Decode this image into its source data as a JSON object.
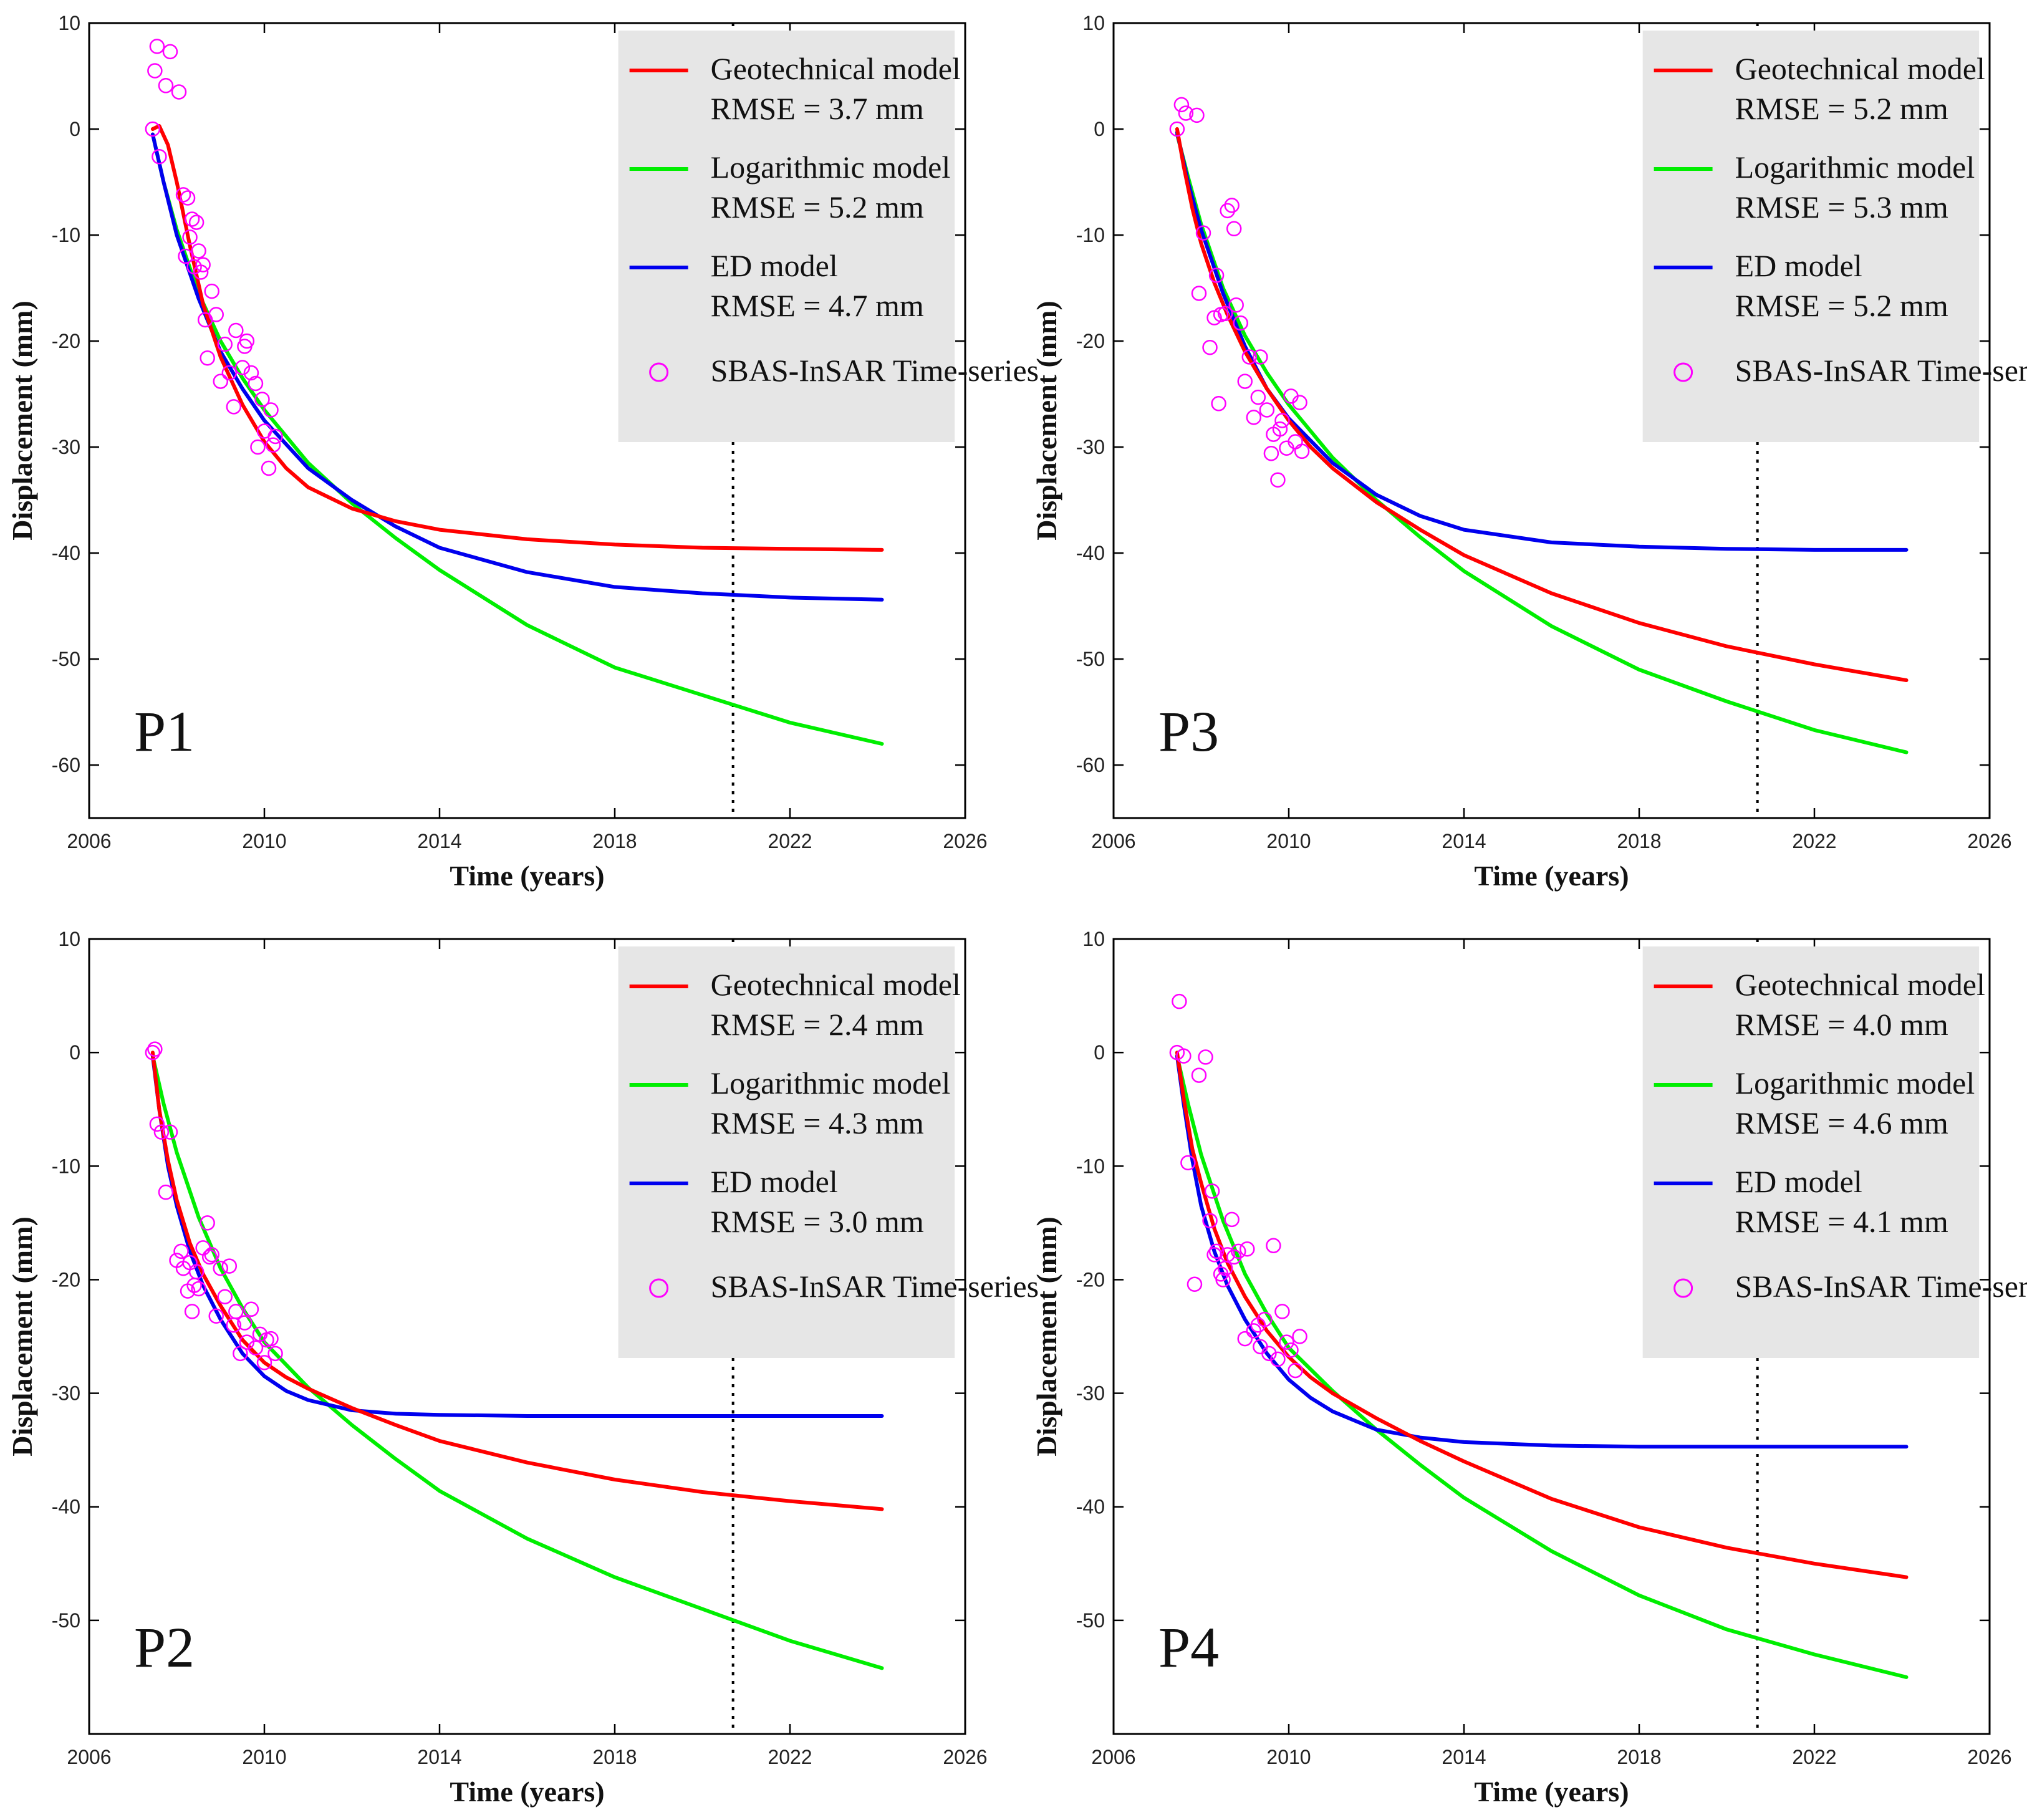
{
  "colors": {
    "geotechnical": "#ff0000",
    "logarithmic": "#00ee00",
    "ed": "#0000ee",
    "sbas": "#ff00ff",
    "legend_bg": "#e6e6e6"
  },
  "legend_labels": {
    "geotechnical": "Geotechnical model",
    "logarithmic": "Logarithmic model",
    "ed": "ED model",
    "sbas": "SBAS-InSAR Time-series"
  },
  "chart_data": [
    {
      "type": "line",
      "panel": "P1",
      "xlabel": "Time (years)",
      "ylabel": "Displacement (mm)",
      "xlim": [
        2006,
        2026
      ],
      "ylim": [
        -65,
        10
      ],
      "xticks": [
        2006,
        2010,
        2014,
        2018,
        2022,
        2026
      ],
      "yticks": [
        10,
        0,
        -10,
        -20,
        -30,
        -40,
        -50,
        -60
      ],
      "vline_x": 2020.7,
      "legend_position": "top-right",
      "rmse": {
        "geotechnical": "RMSE = 3.7 mm",
        "logarithmic": "RMSE = 5.2 mm",
        "ed": "RMSE = 4.7 mm"
      },
      "series": [
        {
          "name": "Geotechnical model",
          "key": "geotechnical",
          "x": [
            2007.45,
            2007.6,
            2007.8,
            2008.0,
            2008.3,
            2008.6,
            2009.0,
            2009.5,
            2010.0,
            2010.5,
            2011.0,
            2012.0,
            2013.0,
            2014.0,
            2016.0,
            2018.0,
            2020.0,
            2022.0,
            2024.1
          ],
          "values": [
            0,
            0.3,
            -1.5,
            -5,
            -11,
            -16.5,
            -21.5,
            -26,
            -29.5,
            -32,
            -33.8,
            -35.8,
            -37,
            -37.8,
            -38.7,
            -39.2,
            -39.5,
            -39.6,
            -39.7
          ]
        },
        {
          "name": "Logarithmic model",
          "key": "logarithmic",
          "x": [
            2007.45,
            2007.7,
            2008.0,
            2008.5,
            2009.0,
            2009.5,
            2010.0,
            2011.0,
            2012.0,
            2013.0,
            2014.0,
            2016.0,
            2018.0,
            2020.0,
            2022.0,
            2024.1
          ],
          "values": [
            -0.5,
            -5,
            -9.5,
            -15.5,
            -20,
            -23.5,
            -26.5,
            -31.5,
            -35.3,
            -38.6,
            -41.6,
            -46.8,
            -50.8,
            -53.4,
            -56,
            -58
          ]
        },
        {
          "name": "ED model",
          "key": "ed",
          "x": [
            2007.45,
            2007.7,
            2008.0,
            2008.5,
            2009.0,
            2009.5,
            2010.0,
            2011.0,
            2012.0,
            2013.0,
            2014.0,
            2016.0,
            2018.0,
            2020.0,
            2022.0,
            2024.1
          ],
          "values": [
            -0.5,
            -5,
            -10,
            -16,
            -21,
            -24.5,
            -27.5,
            -32,
            -35,
            -37.5,
            -39.5,
            -41.8,
            -43.2,
            -43.8,
            -44.2,
            -44.4
          ]
        }
      ],
      "scatter": {
        "name": "SBAS-InSAR Time-series",
        "key": "sbas",
        "x": [
          2007.45,
          2007.5,
          2007.55,
          2007.6,
          2007.75,
          2007.85,
          2008.05,
          2008.15,
          2008.2,
          2008.25,
          2008.3,
          2008.35,
          2008.4,
          2008.45,
          2008.5,
          2008.55,
          2008.6,
          2008.65,
          2008.7,
          2008.8,
          2008.9,
          2009.0,
          2009.1,
          2009.2,
          2009.3,
          2009.35,
          2009.5,
          2009.55,
          2009.6,
          2009.7,
          2009.8,
          2009.85,
          2009.95,
          2010.0,
          2010.1,
          2010.15,
          2010.2,
          2010.25
        ],
        "values": [
          0,
          5.5,
          7.8,
          -2.6,
          4.1,
          7.3,
          3.5,
          -6.2,
          -12,
          -6.5,
          -10.2,
          -8.5,
          -13,
          -8.8,
          -11.5,
          -13.5,
          -12.8,
          -18,
          -21.6,
          -15.3,
          -17.5,
          -23.8,
          -20.3,
          -23,
          -26.2,
          -19,
          -22.5,
          -20.5,
          -20,
          -23,
          -24,
          -30,
          -25.5,
          -28.5,
          -32,
          -26.5,
          -29.8,
          -29
        ]
      }
    },
    {
      "type": "line",
      "panel": "P3",
      "xlabel": "Time (years)",
      "ylabel": "Displacement (mm)",
      "xlim": [
        2006,
        2026
      ],
      "ylim": [
        -65,
        10
      ],
      "xticks": [
        2006,
        2010,
        2014,
        2018,
        2022,
        2026
      ],
      "yticks": [
        10,
        0,
        -10,
        -20,
        -30,
        -40,
        -50,
        -60
      ],
      "vline_x": 2020.7,
      "legend_position": "top-right",
      "rmse": {
        "geotechnical": "RMSE = 5.2 mm",
        "logarithmic": "RMSE = 5.3 mm",
        "ed": "RMSE = 5.2 mm"
      },
      "series": [
        {
          "name": "Geotechnical model",
          "key": "geotechnical",
          "x": [
            2007.45,
            2007.6,
            2007.8,
            2008.0,
            2008.3,
            2008.6,
            2009.0,
            2009.5,
            2010.0,
            2010.5,
            2011.0,
            2012.0,
            2013.0,
            2014.0,
            2016.0,
            2018.0,
            2020.0,
            2022.0,
            2024.1
          ],
          "values": [
            0,
            -3.5,
            -7.5,
            -10.8,
            -14.5,
            -17.5,
            -21,
            -24.5,
            -27.5,
            -30,
            -32,
            -35.2,
            -37.8,
            -40.2,
            -43.8,
            -46.6,
            -48.8,
            -50.5,
            -52
          ]
        },
        {
          "name": "Logarithmic model",
          "key": "logarithmic",
          "x": [
            2007.45,
            2007.7,
            2008.0,
            2008.5,
            2009.0,
            2009.5,
            2010.0,
            2011.0,
            2012.0,
            2013.0,
            2014.0,
            2016.0,
            2018.0,
            2020.0,
            2022.0,
            2024.1
          ],
          "values": [
            -0.5,
            -4.5,
            -9,
            -15,
            -19.5,
            -23,
            -26,
            -31,
            -35,
            -38.5,
            -41.7,
            -46.9,
            -51,
            -54,
            -56.7,
            -58.8
          ]
        },
        {
          "name": "ED model",
          "key": "ed",
          "x": [
            2007.45,
            2007.7,
            2008.0,
            2008.5,
            2009.0,
            2009.5,
            2010.0,
            2011.0,
            2012.0,
            2013.0,
            2014.0,
            2016.0,
            2018.0,
            2020.0,
            2022.0,
            2024.1
          ],
          "values": [
            -0.3,
            -5,
            -9.5,
            -15.5,
            -20.5,
            -24.5,
            -27.3,
            -31.5,
            -34.5,
            -36.5,
            -37.8,
            -39,
            -39.4,
            -39.6,
            -39.7,
            -39.7
          ]
        }
      ],
      "scatter": {
        "name": "SBAS-InSAR Time-series",
        "key": "sbas",
        "x": [
          2007.45,
          2007.55,
          2007.65,
          2007.9,
          2008.05,
          2007.95,
          2008.2,
          2008.3,
          2008.35,
          2008.4,
          2008.45,
          2008.55,
          2008.6,
          2008.7,
          2008.75,
          2008.8,
          2008.9,
          2009.0,
          2009.1,
          2009.2,
          2009.3,
          2009.35,
          2009.5,
          2009.6,
          2009.65,
          2009.75,
          2009.8,
          2009.85,
          2009.95,
          2010.05,
          2010.15,
          2010.25,
          2010.3
        ],
        "values": [
          0,
          2.3,
          1.5,
          1.3,
          -9.8,
          -15.5,
          -20.6,
          -17.8,
          -13.8,
          -25.9,
          -17.5,
          -17.4,
          -7.7,
          -7.2,
          -9.4,
          -16.6,
          -18.3,
          -23.8,
          -21.5,
          -27.2,
          -25.3,
          -21.5,
          -26.5,
          -30.6,
          -28.8,
          -33.1,
          -28.3,
          -27.5,
          -30.1,
          -25.2,
          -29.5,
          -25.8,
          -30.4
        ]
      }
    },
    {
      "type": "line",
      "panel": "P2",
      "xlabel": "Time (years)",
      "ylabel": "Displacement (mm)",
      "xlim": [
        2006,
        2026
      ],
      "ylim": [
        -60,
        10
      ],
      "xticks": [
        2006,
        2010,
        2014,
        2018,
        2022,
        2026
      ],
      "yticks": [
        10,
        0,
        -10,
        -20,
        -30,
        -40,
        -50
      ],
      "vline_x": 2020.7,
      "legend_position": "top-right",
      "rmse": {
        "geotechnical": "RMSE = 2.4 mm",
        "logarithmic": "RMSE = 4.3 mm",
        "ed": "RMSE = 3.0 mm"
      },
      "series": [
        {
          "name": "Geotechnical model",
          "key": "geotechnical",
          "x": [
            2007.45,
            2007.6,
            2007.8,
            2008.0,
            2008.3,
            2008.6,
            2009.0,
            2009.5,
            2010.0,
            2010.5,
            2011.0,
            2012.0,
            2013.0,
            2014.0,
            2016.0,
            2018.0,
            2020.0,
            2022.0,
            2024.1
          ],
          "values": [
            0,
            -5,
            -9.5,
            -13,
            -16.8,
            -19.5,
            -22.3,
            -25.3,
            -27.3,
            -28.6,
            -29.6,
            -31.3,
            -32.8,
            -34.2,
            -36.1,
            -37.6,
            -38.7,
            -39.5,
            -40.2
          ]
        },
        {
          "name": "Logarithmic model",
          "key": "logarithmic",
          "x": [
            2007.45,
            2007.7,
            2008.0,
            2008.5,
            2009.0,
            2009.5,
            2010.0,
            2011.0,
            2012.0,
            2013.0,
            2014.0,
            2016.0,
            2018.0,
            2020.0,
            2022.0,
            2024.1
          ],
          "values": [
            -0.3,
            -4.5,
            -8.8,
            -14.5,
            -19,
            -22.5,
            -25.5,
            -29.5,
            -32.8,
            -35.8,
            -38.6,
            -42.8,
            -46.2,
            -49,
            -51.8,
            -54.2
          ]
        },
        {
          "name": "ED model",
          "key": "ed",
          "x": [
            2007.45,
            2007.6,
            2007.8,
            2008.0,
            2008.3,
            2008.6,
            2009.0,
            2009.5,
            2010.0,
            2010.5,
            2011.0,
            2012.0,
            2013.0,
            2014.0,
            2016.0,
            2018.0,
            2020.0,
            2022.0,
            2024.1
          ],
          "values": [
            -0.3,
            -5,
            -10,
            -13.5,
            -17.5,
            -20.5,
            -23.5,
            -26.5,
            -28.5,
            -29.8,
            -30.6,
            -31.5,
            -31.8,
            -31.9,
            -32,
            -32,
            -32,
            -32,
            -32
          ]
        }
      ],
      "scatter": {
        "name": "SBAS-InSAR Time-series",
        "key": "sbas",
        "x": [
          2007.45,
          2007.5,
          2007.55,
          2007.65,
          2007.75,
          2007.85,
          2008.0,
          2008.1,
          2008.15,
          2008.25,
          2008.3,
          2008.35,
          2008.4,
          2008.45,
          2008.5,
          2008.6,
          2008.7,
          2008.75,
          2008.8,
          2008.9,
          2009.0,
          2009.1,
          2009.2,
          2009.3,
          2009.35,
          2009.45,
          2009.55,
          2009.6,
          2009.7,
          2009.8,
          2009.9,
          2010.0,
          2010.05,
          2010.15,
          2010.25
        ],
        "values": [
          0,
          0.3,
          -6.3,
          -7,
          -12.3,
          -7,
          -18.3,
          -17.5,
          -19,
          -21,
          -18.5,
          -22.8,
          -20.5,
          -19.3,
          -20.8,
          -17.2,
          -15,
          -18,
          -17.8,
          -23.2,
          -19,
          -21.5,
          -18.8,
          -24,
          -22.8,
          -26.5,
          -23.8,
          -25.5,
          -22.6,
          -26,
          -24.8,
          -27.3,
          -25.3,
          -25.2,
          -26.5
        ]
      }
    },
    {
      "type": "line",
      "panel": "P4",
      "xlabel": "Time (years)",
      "ylabel": "Displacement (mm)",
      "xlim": [
        2006,
        2026
      ],
      "ylim": [
        -60,
        10
      ],
      "xticks": [
        2006,
        2010,
        2014,
        2018,
        2022,
        2026
      ],
      "yticks": [
        10,
        0,
        -10,
        -20,
        -30,
        -40,
        -50
      ],
      "vline_x": 2020.7,
      "legend_position": "top-right",
      "rmse": {
        "geotechnical": "RMSE = 4.0 mm",
        "logarithmic": "RMSE = 4.6 mm",
        "ed": "RMSE = 4.1 mm"
      },
      "series": [
        {
          "name": "Geotechnical model",
          "key": "geotechnical",
          "x": [
            2007.45,
            2007.6,
            2007.8,
            2008.0,
            2008.3,
            2008.6,
            2009.0,
            2009.5,
            2010.0,
            2010.5,
            2011.0,
            2012.0,
            2013.0,
            2014.0,
            2016.0,
            2018.0,
            2020.0,
            2022.0,
            2024.1
          ],
          "values": [
            0,
            -4,
            -8.5,
            -11.5,
            -15.5,
            -18.5,
            -21.5,
            -24.5,
            -26.8,
            -28.6,
            -30,
            -32.2,
            -34.2,
            -36,
            -39.3,
            -41.8,
            -43.6,
            -45,
            -46.2
          ]
        },
        {
          "name": "Logarithmic model",
          "key": "logarithmic",
          "x": [
            2007.45,
            2007.7,
            2008.0,
            2008.5,
            2009.0,
            2009.5,
            2010.0,
            2011.0,
            2012.0,
            2013.0,
            2014.0,
            2016.0,
            2018.0,
            2020.0,
            2022.0,
            2024.1
          ],
          "values": [
            -0.3,
            -4.5,
            -9,
            -14.8,
            -19.5,
            -23,
            -26,
            -29.8,
            -33.2,
            -36.3,
            -39.2,
            -43.9,
            -47.8,
            -50.8,
            -53,
            -55
          ]
        },
        {
          "name": "ED model",
          "key": "ed",
          "x": [
            2007.45,
            2007.6,
            2007.8,
            2008.0,
            2008.3,
            2008.6,
            2009.0,
            2009.5,
            2010.0,
            2010.5,
            2011.0,
            2012.0,
            2013.0,
            2014.0,
            2016.0,
            2018.0,
            2020.0,
            2022.0,
            2024.1
          ],
          "values": [
            -0.3,
            -4.5,
            -9.5,
            -13.5,
            -17.5,
            -20.5,
            -23.5,
            -26.5,
            -28.8,
            -30.4,
            -31.6,
            -33.2,
            -33.9,
            -34.3,
            -34.6,
            -34.7,
            -34.7,
            -34.7,
            -34.7
          ]
        }
      ],
      "scatter": {
        "name": "SBAS-InSAR Time-series",
        "key": "sbas",
        "x": [
          2007.45,
          2007.5,
          2007.6,
          2007.7,
          2007.85,
          2007.95,
          2008.1,
          2008.2,
          2008.25,
          2008.3,
          2008.35,
          2008.45,
          2008.5,
          2008.55,
          2008.6,
          2008.7,
          2008.75,
          2008.85,
          2009.0,
          2009.05,
          2009.2,
          2009.3,
          2009.35,
          2009.45,
          2009.55,
          2009.65,
          2009.75,
          2009.85,
          2009.95,
          2010.05,
          2010.15,
          2010.25
        ],
        "values": [
          0,
          4.5,
          -0.3,
          -9.7,
          -20.4,
          -2,
          -0.4,
          -14.8,
          -12.2,
          -17.8,
          -17.5,
          -19.5,
          -20,
          -19,
          -17.8,
          -14.7,
          -18,
          -17.5,
          -25.2,
          -17.3,
          -24.5,
          -24,
          -25.9,
          -23.5,
          -26.5,
          -17,
          -27,
          -22.8,
          -25.5,
          -26.2,
          -28,
          -25
        ]
      }
    }
  ]
}
